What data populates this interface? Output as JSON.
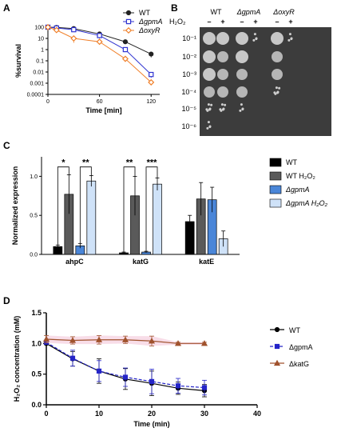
{
  "panels": {
    "a": "A",
    "b": "B",
    "c": "C",
    "d": "D"
  },
  "chart_data": [
    {
      "type": "line",
      "panel": "A",
      "xlabel": "Time [min]",
      "ylabel": "%survival",
      "xlim": [
        0,
        130
      ],
      "ylim": [
        0.0001,
        100
      ],
      "yscale": "log",
      "xticks": [
        "0",
        "60",
        "120"
      ],
      "yticks": [
        "100",
        "10",
        "1",
        "0.1",
        "0.01",
        "0.001",
        "0.0001"
      ],
      "legend_position": "top-right",
      "series": [
        {
          "name": "WT",
          "color": "#222222",
          "marker": "circle-filled",
          "x": [
            0,
            10,
            30,
            60,
            90,
            120
          ],
          "y": [
            100,
            95,
            75,
            25,
            5,
            0.4
          ],
          "err": [
            0,
            0,
            0,
            0,
            0,
            0.2
          ]
        },
        {
          "name": "ΔgpmA",
          "color": "#2f33d0",
          "marker": "square-open",
          "x": [
            0,
            10,
            30,
            60,
            90,
            120
          ],
          "y": [
            100,
            85,
            60,
            18,
            1.0,
            0.006
          ],
          "err": [
            0,
            0,
            0,
            8,
            0.3,
            0.003
          ]
        },
        {
          "name": "ΔoxyR",
          "color": "#f0802a",
          "marker": "diamond-open",
          "x": [
            0,
            10,
            30,
            60,
            90,
            120
          ],
          "y": [
            100,
            55,
            10,
            5,
            0.15,
            0.0012
          ],
          "err": [
            0,
            0,
            6,
            2,
            0,
            0
          ]
        }
      ]
    },
    {
      "type": "bar",
      "panel": "C",
      "ylabel": "Normalized expression",
      "ylim": [
        0,
        1.25
      ],
      "yticks": [
        "0.0",
        "0.5",
        "1.0"
      ],
      "categories": [
        "ahpC",
        "katG",
        "katE"
      ],
      "legend_position": "right",
      "series": [
        {
          "name": "WT",
          "color": "#000000",
          "values": [
            0.1,
            0.02,
            0.42
          ],
          "err": [
            0.02,
            0.01,
            0.08
          ]
        },
        {
          "name": "WT H₂O₂",
          "color": "#5a5a5a",
          "values": [
            0.77,
            0.75,
            0.71
          ],
          "err": [
            0.25,
            0.25,
            0.21
          ]
        },
        {
          "name": "ΔgpmA",
          "color": "#4a86d8",
          "values": [
            0.11,
            0.03,
            0.7
          ],
          "err": [
            0.03,
            0.01,
            0.16
          ]
        },
        {
          "name": "ΔgpmA H₂O₂",
          "color": "#cfe2f8",
          "values": [
            0.94,
            0.9,
            0.2
          ],
          "err": [
            0.07,
            0.08,
            0.1
          ]
        }
      ],
      "significance": [
        {
          "category": "ahpC",
          "between": [
            0,
            1
          ],
          "label": "*"
        },
        {
          "category": "ahpC",
          "between": [
            2,
            3
          ],
          "label": "**"
        },
        {
          "category": "katG",
          "between": [
            0,
            1
          ],
          "label": "**"
        },
        {
          "category": "katG",
          "between": [
            2,
            3
          ],
          "label": "***"
        }
      ]
    },
    {
      "type": "line",
      "panel": "D",
      "xlabel": "Time (min)",
      "ylabel": "H₂O₂ concentration (mM)",
      "xlim": [
        0,
        40
      ],
      "ylim": [
        0,
        1.5
      ],
      "xticks": [
        "0",
        "10",
        "20",
        "30",
        "40"
      ],
      "yticks": [
        "0.0",
        "0.5",
        "1.0",
        "1.5"
      ],
      "legend_position": "right",
      "series": [
        {
          "name": "WT",
          "color": "#000000",
          "marker": "circle",
          "x": [
            0,
            5,
            10,
            15,
            20,
            25,
            30
          ],
          "y": [
            1.0,
            0.75,
            0.55,
            0.42,
            0.35,
            0.27,
            0.23
          ],
          "err": [
            0.02,
            0.12,
            0.2,
            0.17,
            0.2,
            0.1,
            0.1
          ]
        },
        {
          "name": "ΔgpmA",
          "color": "#2424c8",
          "marker": "square",
          "x": [
            0,
            5,
            10,
            15,
            20,
            25,
            30
          ],
          "y": [
            1.02,
            0.76,
            0.55,
            0.45,
            0.38,
            0.31,
            0.28
          ],
          "err": [
            0.02,
            0.13,
            0.17,
            0.15,
            0.2,
            0.12,
            0.12
          ]
        },
        {
          "name": "ΔkatG",
          "color": "#a0522d",
          "marker": "triangle",
          "x": [
            0,
            5,
            10,
            15,
            20,
            25,
            30
          ],
          "y": [
            1.07,
            1.05,
            1.06,
            1.06,
            1.04,
            1.0,
            1.0
          ],
          "err": [
            0.06,
            0.06,
            0.07,
            0.06,
            0.08,
            0.02,
            0.02
          ]
        }
      ]
    }
  ],
  "spot_assay": {
    "panel": "B",
    "strains": [
      "WT",
      "ΔgpmA",
      "ΔoxyR"
    ],
    "treatment_label": "H₂O₂",
    "column_signs": [
      "–",
      "+",
      "–",
      "+",
      "–",
      "+"
    ],
    "dilutions": [
      "10⁻¹",
      "10⁻²",
      "10⁻³",
      "10⁻⁴",
      "10⁻⁵",
      "10⁻⁶"
    ],
    "growth": [
      [
        4,
        4,
        4,
        1,
        4,
        1
      ],
      [
        4,
        3,
        4,
        0,
        3,
        0
      ],
      [
        4,
        3,
        3,
        0,
        3,
        0
      ],
      [
        3,
        3,
        3,
        0,
        2,
        0
      ],
      [
        2,
        2,
        1,
        0,
        0,
        0
      ],
      [
        1,
        0,
        0,
        0,
        0,
        0
      ]
    ]
  }
}
